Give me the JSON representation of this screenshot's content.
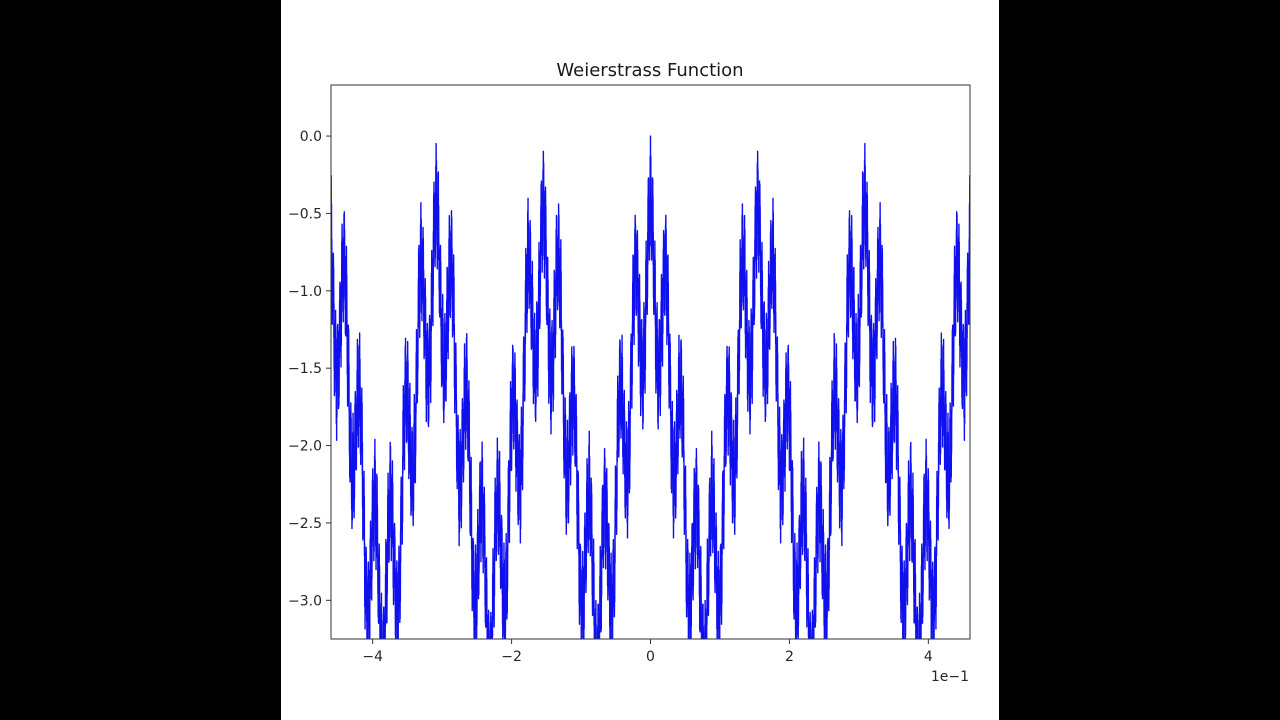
{
  "chart_data": {
    "type": "line",
    "title": "Weierstrass Function",
    "xlabel": "",
    "ylabel": "",
    "x_offset_label": "1e−1",
    "xlim": [
      -4.6,
      4.6
    ],
    "ylim": [
      -3.25,
      0.33
    ],
    "xticks": [
      -4,
      -2,
      0,
      2,
      4
    ],
    "xtick_labels": [
      "−4",
      "−2",
      "0",
      "2",
      "4"
    ],
    "yticks": [
      0.0,
      -0.5,
      -1.0,
      -1.5,
      -2.0,
      -2.5,
      -3.0
    ],
    "ytick_labels": [
      "0.0",
      "−0.5",
      "−1.0",
      "−1.5",
      "−2.0",
      "−2.5",
      "−3.0"
    ],
    "grid": false,
    "line_color": "#1010ee",
    "function": {
      "a": 0.5,
      "b": 7,
      "terms": 5,
      "period": 1.543,
      "x_scale": 0.1
    }
  },
  "colors": {
    "background": "#000000",
    "figure": "#ffffff",
    "axes": "#333333"
  }
}
